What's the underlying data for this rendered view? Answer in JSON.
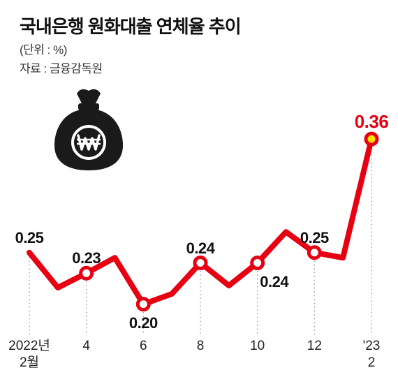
{
  "title": "국내은행 원화대출 연체율 추이",
  "unit": "(단위 : %)",
  "source": "자료 : 금융감독원",
  "chart": {
    "type": "line",
    "line_color": "#e60012",
    "line_width": 8,
    "marker_stroke": "#e60012",
    "marker_fill": "#ffffff",
    "marker_radius": 8,
    "marker_stroke_width": 5,
    "highlight_marker_fill": "#ffe400",
    "gridline_color": "#9a9a9a",
    "gridline_dash": "1.5 4",
    "background_color": "#ffffff",
    "ymin": 0.17,
    "ymax": 0.4,
    "points": [
      {
        "x_year": "2022년",
        "x_month": "2월",
        "value": 0.25,
        "label": "0.25",
        "label_pos": "above",
        "show_marker": false
      },
      {
        "x_year": "",
        "x_month": "4",
        "value": 0.23,
        "label": "0.23",
        "label_pos": "above",
        "show_marker": true
      },
      {
        "x_year": "",
        "x_month": "6",
        "value": 0.2,
        "label": "0.20",
        "label_pos": "below",
        "show_marker": true
      },
      {
        "x_year": "",
        "x_month": "8",
        "value": 0.24,
        "label": "0.24",
        "label_pos": "above",
        "show_marker": true
      },
      {
        "x_year": "",
        "x_month": "10",
        "value": 0.24,
        "label": "0.24",
        "label_pos": "below-right",
        "show_marker": true
      },
      {
        "x_year": "",
        "x_month": "12",
        "value": 0.25,
        "label": "0.25",
        "label_pos": "above",
        "show_marker": true
      },
      {
        "x_year": "'23",
        "x_month": "2",
        "value": 0.36,
        "label": "0.36",
        "label_pos": "above",
        "show_marker": true,
        "highlight": true
      }
    ],
    "intermediate": [
      {
        "after_index": 0,
        "value": 0.216
      },
      {
        "after_index": 1,
        "value": 0.245
      },
      {
        "after_index": 2,
        "value": 0.21
      },
      {
        "after_index": 3,
        "value": 0.218
      },
      {
        "after_index": 4,
        "value": 0.27
      },
      {
        "after_index": 5,
        "value": 0.245
      }
    ]
  },
  "money_bag": {
    "fill": "#1a1a1a",
    "won_stroke": "#ffffff"
  }
}
